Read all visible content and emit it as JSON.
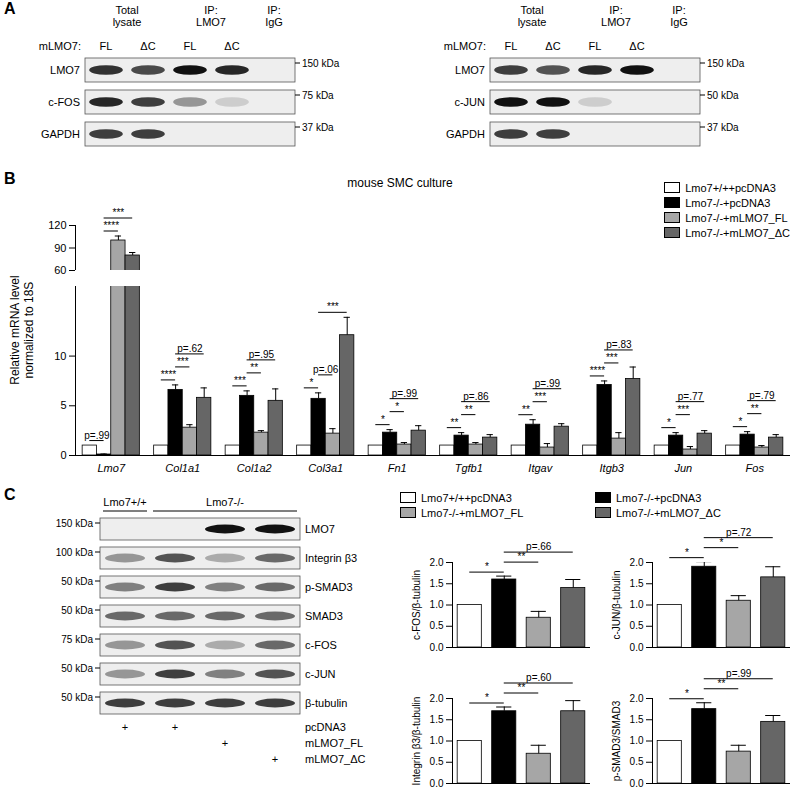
{
  "panel_letters": [
    "A",
    "B",
    "C"
  ],
  "panel_a": {
    "blots": [
      {
        "headers": [
          {
            "text": "Total lysate",
            "lanes": [
              0,
              1
            ]
          },
          {
            "text": "IP: LMO7",
            "lanes": [
              2,
              3
            ]
          },
          {
            "text": "IP: IgG",
            "lanes": [
              4
            ]
          }
        ],
        "lane_labels": {
          "label": "mLMO7:",
          "lanes": [
            "FL",
            "ΔC",
            "FL",
            "ΔC",
            null
          ]
        },
        "rows": [
          {
            "label": "LMO7",
            "kda": "150 kDa",
            "bands": [
              0.85,
              0.75,
              1.0,
              0.9,
              0
            ]
          },
          {
            "label": "c-FOS",
            "kda": "75 kDa",
            "bands": [
              0.9,
              0.8,
              0.4,
              0.15,
              0
            ]
          },
          {
            "label": "GAPDH",
            "kda": "37 kDa",
            "bands": [
              0.8,
              0.8,
              0,
              0,
              0
            ]
          }
        ]
      },
      {
        "headers": [
          {
            "text": "Total lysate",
            "lanes": [
              0,
              1
            ]
          },
          {
            "text": "IP: LMO7",
            "lanes": [
              2,
              3
            ]
          },
          {
            "text": "IP: IgG",
            "lanes": [
              4
            ]
          }
        ],
        "lane_labels": {
          "label": "mLMO7:",
          "lanes": [
            "FL",
            "ΔC",
            "FL",
            "ΔC",
            null
          ]
        },
        "rows": [
          {
            "label": "LMO7",
            "kda": "150 kDa",
            "bands": [
              0.8,
              0.7,
              0.9,
              1.0,
              0
            ]
          },
          {
            "label": "c-JUN",
            "kda": "50 kDa",
            "bands": [
              1.0,
              1.0,
              0.15,
              0,
              0
            ]
          },
          {
            "label": "GAPDH",
            "kda": "37 kDa",
            "bands": [
              0.8,
              0.8,
              0,
              0,
              0
            ]
          }
        ]
      }
    ]
  },
  "panel_c": {
    "blot": {
      "headers": [
        {
          "text": "Lmo7+/+",
          "lanes": [
            0
          ]
        },
        {
          "text": "Lmo7-/-",
          "lanes": [
            1,
            2,
            3
          ]
        }
      ],
      "rows": [
        {
          "label": "LMO7",
          "kda": "150 kDa",
          "bands": [
            0,
            0,
            1.0,
            1.0
          ]
        },
        {
          "label": "Integrin β3",
          "kda": "100 kDa",
          "bands": [
            0.4,
            0.7,
            0.3,
            0.6
          ]
        },
        {
          "label": "p-SMAD3",
          "kda": "50 kDa",
          "bands": [
            0.5,
            0.8,
            0.5,
            0.6
          ]
        },
        {
          "label": "SMAD3",
          "kda": "50 kDa",
          "bands": [
            0.6,
            0.6,
            0.6,
            0.6
          ]
        },
        {
          "label": "c-FOS",
          "kda": "75 kDa",
          "bands": [
            0.4,
            0.7,
            0.3,
            0.6
          ]
        },
        {
          "label": "c-JUN",
          "kda": "50 kDa",
          "bands": [
            0.4,
            0.8,
            0.5,
            0.7
          ]
        },
        {
          "label": "β-tubulin",
          "kda": "50 kDa",
          "bands": [
            0.8,
            0.8,
            0.8,
            0.8
          ]
        }
      ],
      "treatments": [
        {
          "label": "pcDNA3",
          "lanes": [
            "+",
            "+",
            null,
            null
          ]
        },
        {
          "label": "mLMO7_FL",
          "lanes": [
            null,
            null,
            "+",
            null
          ]
        },
        {
          "label": "mLMO7_ΔC",
          "lanes": [
            null,
            null,
            null,
            "+"
          ]
        }
      ]
    },
    "legend": [
      {
        "name": "Lmo7+/++pcDNA3",
        "color": "#ffffff"
      },
      {
        "name": "Lmo7-/-+pcDNA3",
        "color": "#000000"
      },
      {
        "name": "Lmo7-/-+mLMO7_FL",
        "color": "#a6a6a6"
      },
      {
        "name": "Lmo7-/-+mLMO7_ΔC",
        "color": "#666666"
      }
    ]
  },
  "chart_data": [
    {
      "type": "bar",
      "title": "mouse SMC culture",
      "y_label": "Relative mRNA level normalized to 18S",
      "categories": [
        "Lmo7",
        "Col1a1",
        "Col1a2",
        "Col3a1",
        "Fn1",
        "Tgfb1",
        "Itgav",
        "Itgb3",
        "Jun",
        "Fos"
      ],
      "series": [
        {
          "name": "Lmo7+/++pcDNA3",
          "color": "#ffffff",
          "values": [
            1,
            1,
            1,
            1,
            1,
            1,
            1,
            1,
            1,
            1
          ],
          "errors": [
            0,
            0,
            0,
            0,
            0,
            0,
            0,
            0,
            0,
            0
          ]
        },
        {
          "name": "Lmo7-/-+pcDNA3",
          "color": "#000000",
          "values": [
            0.1,
            6.6,
            6.0,
            5.7,
            2.3,
            2.0,
            3.1,
            7.1,
            2.0,
            2.1
          ],
          "errors": [
            0.05,
            0.5,
            0.5,
            0.6,
            0.3,
            0.3,
            0.5,
            0.4,
            0.3,
            0.3
          ]
        },
        {
          "name": "Lmo7-/-+mLMO7_FL",
          "color": "#a6a6a6",
          "values": [
            100,
            2.8,
            2.3,
            2.2,
            1.1,
            1.1,
            0.8,
            1.7,
            0.6,
            0.8
          ],
          "errors": [
            6,
            0.3,
            0.2,
            0.5,
            0.2,
            0.2,
            0.4,
            0.6,
            0.3,
            0.2
          ]
        },
        {
          "name": "Lmo7-/-+mLMO7_ΔC",
          "color": "#666666",
          "values": [
            80,
            5.8,
            5.5,
            12.1,
            2.5,
            1.8,
            2.9,
            7.7,
            2.2,
            1.8
          ],
          "errors": [
            4,
            1.0,
            1.2,
            1.8,
            0.5,
            0.3,
            0.3,
            1.2,
            0.3,
            0.3
          ]
        }
      ],
      "ylim": [
        0,
        120
      ],
      "axis_break": [
        17,
        60
      ],
      "yticks": [
        0,
        5,
        10,
        60,
        90,
        120
      ],
      "legend": "top-right",
      "annotations": [
        {
          "category": "Lmo7",
          "from": 0,
          "to": 1,
          "label": "p=.99"
        },
        {
          "category": "Lmo7",
          "from": 1,
          "to": 2,
          "label": "****"
        },
        {
          "category": "Lmo7",
          "from": 1,
          "to": 3,
          "label": "***"
        },
        {
          "category": "Col1a1",
          "from": 0,
          "to": 1,
          "label": "****"
        },
        {
          "category": "Col1a1",
          "from": 1,
          "to": 2,
          "label": "***"
        },
        {
          "category": "Col1a1",
          "from": 1,
          "to": 3,
          "label": "p=.62"
        },
        {
          "category": "Col1a2",
          "from": 0,
          "to": 1,
          "label": "***"
        },
        {
          "category": "Col1a2",
          "from": 1,
          "to": 2,
          "label": "**"
        },
        {
          "category": "Col1a2",
          "from": 1,
          "to": 3,
          "label": "p=.95"
        },
        {
          "category": "Col3a1",
          "from": 0,
          "to": 1,
          "label": "*"
        },
        {
          "category": "Col3a1",
          "from": 1,
          "to": 2,
          "label": "p=.06"
        },
        {
          "category": "Col3a1",
          "from": 1,
          "to": 3,
          "label": "***"
        },
        {
          "category": "Fn1",
          "from": 0,
          "to": 1,
          "label": "*"
        },
        {
          "category": "Fn1",
          "from": 1,
          "to": 2,
          "label": "*"
        },
        {
          "category": "Fn1",
          "from": 1,
          "to": 3,
          "label": "p=.99"
        },
        {
          "category": "Tgfb1",
          "from": 0,
          "to": 1,
          "label": "**"
        },
        {
          "category": "Tgfb1",
          "from": 1,
          "to": 2,
          "label": "**"
        },
        {
          "category": "Tgfb1",
          "from": 1,
          "to": 3,
          "label": "p=.86"
        },
        {
          "category": "Itgav",
          "from": 0,
          "to": 1,
          "label": "**"
        },
        {
          "category": "Itgav",
          "from": 1,
          "to": 2,
          "label": "***"
        },
        {
          "category": "Itgav",
          "from": 1,
          "to": 3,
          "label": "p=.99"
        },
        {
          "category": "Itgb3",
          "from": 0,
          "to": 1,
          "label": "****"
        },
        {
          "category": "Itgb3",
          "from": 1,
          "to": 2,
          "label": "***"
        },
        {
          "category": "Itgb3",
          "from": 1,
          "to": 3,
          "label": "p=.83"
        },
        {
          "category": "Jun",
          "from": 0,
          "to": 1,
          "label": "*"
        },
        {
          "category": "Jun",
          "from": 1,
          "to": 2,
          "label": "***"
        },
        {
          "category": "Jun",
          "from": 1,
          "to": 3,
          "label": "p=.77"
        },
        {
          "category": "Fos",
          "from": 0,
          "to": 1,
          "label": "*"
        },
        {
          "category": "Fos",
          "from": 1,
          "to": 2,
          "label": "**"
        },
        {
          "category": "Fos",
          "from": 1,
          "to": 3,
          "label": "p=.79"
        }
      ]
    },
    {
      "type": "bar",
      "y_label": "c-FOS/β-tubulin",
      "values": [
        1.0,
        1.6,
        0.7,
        1.4
      ],
      "errors": [
        0,
        0.08,
        0.15,
        0.2
      ],
      "colors": [
        "#ffffff",
        "#000000",
        "#a6a6a6",
        "#666666"
      ],
      "ylim": [
        0,
        2
      ],
      "yticks": [
        {
          "value": 0,
          "label": "0.0"
        },
        0.5,
        {
          "value": 1,
          "label": "1.0"
        },
        1.5,
        {
          "value": 2,
          "label": "2.0"
        }
      ],
      "tick_labels": "y",
      "annotations": [
        {
          "from": 0,
          "to": 1,
          "label": "*"
        },
        {
          "from": 1,
          "to": 2,
          "label": "**"
        },
        {
          "from": 1,
          "to": 3,
          "label": "p=.66"
        }
      ]
    },
    {
      "type": "bar",
      "y_label": "c-JUN/β-tubulin",
      "values": [
        1.0,
        1.9,
        1.1,
        1.65
      ],
      "errors": [
        0,
        0.12,
        0.12,
        0.25
      ],
      "colors": [
        "#ffffff",
        "#000000",
        "#a6a6a6",
        "#666666"
      ],
      "ylim": [
        0,
        2
      ],
      "yticks": [
        {
          "value": 0,
          "label": "0.0"
        },
        0.5,
        {
          "value": 1,
          "label": "1.0"
        },
        1.5,
        {
          "value": 2,
          "label": "2.0"
        }
      ],
      "tick_labels": "y",
      "annotations": [
        {
          "from": 0,
          "to": 1,
          "label": "*"
        },
        {
          "from": 1,
          "to": 2,
          "label": "*"
        },
        {
          "from": 1,
          "to": 3,
          "label": "p=.72"
        }
      ]
    },
    {
      "type": "bar",
      "y_label": "Integrin β3/β-tubulin",
      "values": [
        1.0,
        1.7,
        0.7,
        1.7
      ],
      "errors": [
        0,
        0.1,
        0.2,
        0.25
      ],
      "colors": [
        "#ffffff",
        "#000000",
        "#a6a6a6",
        "#666666"
      ],
      "ylim": [
        0,
        2
      ],
      "yticks": [
        {
          "value": 0,
          "label": "0.0"
        },
        0.5,
        {
          "value": 1,
          "label": "1.0"
        },
        1.5,
        {
          "value": 2,
          "label": "2.0"
        }
      ],
      "tick_labels": "y",
      "annotations": [
        {
          "from": 0,
          "to": 1,
          "label": "*"
        },
        {
          "from": 1,
          "to": 2,
          "label": "**"
        },
        {
          "from": 1,
          "to": 3,
          "label": "p=.60"
        }
      ]
    },
    {
      "type": "bar",
      "y_label": "p-SMAD3/SMAD3",
      "values": [
        1.0,
        1.75,
        0.75,
        1.45
      ],
      "errors": [
        0,
        0.15,
        0.15,
        0.15
      ],
      "colors": [
        "#ffffff",
        "#000000",
        "#a6a6a6",
        "#666666"
      ],
      "ylim": [
        0,
        2
      ],
      "yticks": [
        {
          "value": 0,
          "label": "0.0"
        },
        0.5,
        {
          "value": 1,
          "label": "1.0"
        },
        1.5,
        {
          "value": 2,
          "label": "2.0"
        }
      ],
      "tick_labels": "y",
      "annotations": [
        {
          "from": 0,
          "to": 1,
          "label": "*"
        },
        {
          "from": 1,
          "to": 2,
          "label": "**"
        },
        {
          "from": 1,
          "to": 3,
          "label": "p=.99"
        }
      ]
    }
  ]
}
